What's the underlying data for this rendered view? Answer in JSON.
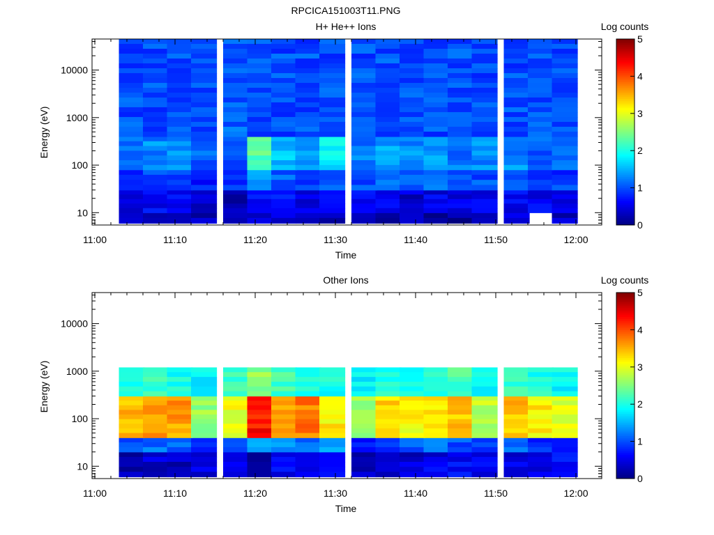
{
  "figure_title": "RPCICA151003T11.PNG",
  "chart_data": [
    {
      "type": "heatmap",
      "title": "H+ He++ Ions",
      "xlabel": "Time",
      "ylabel": "Energy (eV)",
      "x_ticks": [
        "11:00",
        "11:10",
        "11:20",
        "11:30",
        "11:40",
        "11:50",
        "12:00"
      ],
      "y_ticks": [
        "10",
        "100",
        "1000",
        "10000"
      ],
      "y_scale": "log",
      "ylim": [
        5.5,
        45000
      ],
      "colorbar_label": "Log counts",
      "colorbar_ticks": [
        "0",
        "1",
        "2",
        "3",
        "4",
        "5"
      ],
      "color_range": [
        0,
        5
      ],
      "x_bins_start": [
        "11:03",
        "11:06",
        "11:09",
        "11:12",
        "11:16",
        "11:19",
        "11:22",
        "11:25",
        "11:28",
        "11:32",
        "11:35",
        "11:38",
        "11:41",
        "11:44",
        "11:47",
        "11:51",
        "11:54",
        "11:57"
      ],
      "bin_profile_log_counts": [
        {
          "energy_range": [
            6,
            10
          ],
          "levels": [
            0.4,
            0.4,
            0.3,
            0.3,
            0.3,
            0.4,
            0.5,
            0.4,
            0.3,
            0.3,
            0.3,
            0.2,
            0.2,
            0.1,
            0.3,
            0.5,
            null,
            0.3
          ]
        },
        {
          "energy_range": [
            10,
            30
          ],
          "levels": [
            0.5,
            0.6,
            0.6,
            0.4,
            0.3,
            0.6,
            0.7,
            0.5,
            0.5,
            0.7,
            0.6,
            0.4,
            0.5,
            0.5,
            0.6,
            0.6,
            0.6,
            0.6
          ]
        },
        {
          "energy_range": [
            30,
            80
          ],
          "levels": [
            0.9,
            1.0,
            1.0,
            0.8,
            0.8,
            1.4,
            1.1,
            1.0,
            1.0,
            1.0,
            1.1,
            1.0,
            1.1,
            0.9,
            1.0,
            1.0,
            0.8,
            0.9
          ]
        },
        {
          "energy_range": [
            80,
            400
          ],
          "levels": [
            1.2,
            1.3,
            1.3,
            1.1,
            1.1,
            2.3,
            1.6,
            1.4,
            1.8,
            1.2,
            1.4,
            1.3,
            1.4,
            1.2,
            1.3,
            1.3,
            1.1,
            1.2
          ]
        },
        {
          "energy_range": [
            400,
            45000
          ],
          "levels": [
            1.0,
            1.0,
            1.0,
            1.0,
            1.1,
            1.0,
            1.0,
            1.0,
            1.0,
            1.0,
            1.0,
            1.0,
            1.0,
            1.0,
            1.0,
            1.0,
            1.0,
            1.0
          ]
        }
      ]
    },
    {
      "type": "heatmap",
      "title": "Other Ions",
      "xlabel": "Time",
      "ylabel": "Energy (eV)",
      "x_ticks": [
        "11:00",
        "11:10",
        "11:20",
        "11:30",
        "11:40",
        "11:50",
        "12:00"
      ],
      "y_ticks": [
        "10",
        "100",
        "1000",
        "10000"
      ],
      "y_scale": "log",
      "ylim": [
        5.5,
        45000
      ],
      "colorbar_label": "Log counts",
      "colorbar_ticks": [
        "0",
        "1",
        "2",
        "3",
        "4",
        "5"
      ],
      "color_range": [
        0,
        5
      ],
      "x_bins_start": [
        "11:03",
        "11:06",
        "11:09",
        "11:12",
        "11:16",
        "11:19",
        "11:22",
        "11:25",
        "11:28",
        "11:32",
        "11:35",
        "11:38",
        "11:41",
        "11:44",
        "11:47",
        "11:51",
        "11:54",
        "11:57"
      ],
      "bin_profile_log_counts": [
        {
          "energy_range": [
            6,
            20
          ],
          "levels": [
            0.3,
            0.4,
            0.3,
            0.5,
            0.5,
            0.3,
            0.6,
            0.5,
            0.5,
            0.3,
            0.4,
            0.4,
            0.5,
            0.6,
            0.6,
            0.5,
            0.4,
            0.6
          ]
        },
        {
          "energy_range": [
            20,
            40
          ],
          "levels": [
            1.0,
            1.2,
            1.1,
            0.8,
            0.9,
            1.4,
            1.3,
            1.2,
            1.4,
            0.8,
            0.9,
            1.0,
            1.1,
            1.0,
            0.9,
            1.1,
            0.9,
            0.9
          ]
        },
        {
          "energy_range": [
            40,
            300
          ],
          "levels": [
            3.5,
            3.7,
            3.6,
            2.6,
            3.0,
            4.3,
            3.6,
            3.8,
            3.2,
            2.6,
            3.3,
            3.1,
            3.2,
            3.4,
            2.8,
            3.4,
            3.2,
            3.0
          ]
        },
        {
          "energy_range": [
            300,
            1200
          ],
          "levels": [
            2.0,
            2.2,
            2.0,
            1.8,
            2.1,
            2.6,
            2.2,
            2.0,
            2.0,
            1.8,
            2.0,
            2.0,
            2.0,
            2.2,
            1.9,
            2.1,
            2.0,
            1.9
          ]
        }
      ]
    }
  ]
}
